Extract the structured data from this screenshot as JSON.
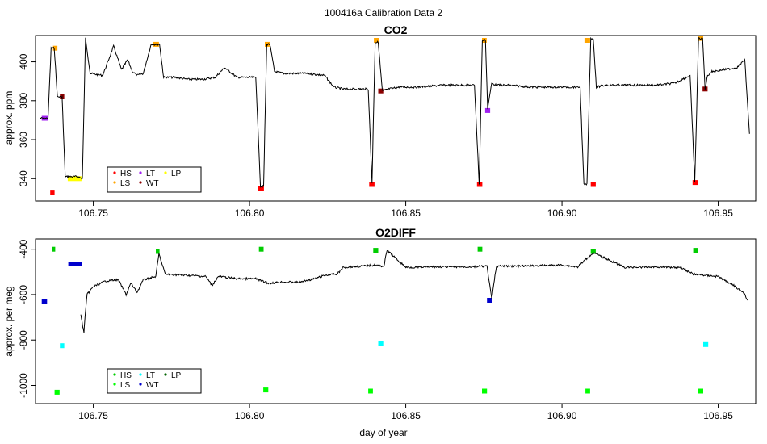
{
  "figure_title": "100416a   Calibration Data 2",
  "x_axis_label": "day of year",
  "x_ticks": [
    "106.75",
    "106.80",
    "106.85",
    "106.90",
    "106.95"
  ],
  "colors": {
    "trace": "#000000",
    "HS": "#ff0000",
    "LS": "#ffa500",
    "LT": "#a020f0",
    "WT": "#8b0000",
    "LP": "#ffff00",
    "o2_HS": "#00cd00",
    "o2_LS": "#00ff00",
    "o2_LT": "#00ffff",
    "o2_WT": "#0000cd",
    "o2_LP": "#006400"
  },
  "chart_data": [
    {
      "type": "line",
      "title": "CO2",
      "ylabel": "approx. ppm",
      "xlim": [
        106.7315,
        106.962
      ],
      "ylim": [
        328.5,
        413.5
      ],
      "y_ticks": [
        "340",
        "360",
        "380",
        "400"
      ],
      "grid": false,
      "legend_position": "bottom-left",
      "legend": [
        "HS",
        "LS",
        "LT",
        "WT",
        "LP"
      ],
      "series": [
        {
          "x": [
            106.733,
            106.7355,
            106.7365,
            106.7375,
            106.7385,
            106.74,
            106.741,
            106.742,
            106.745,
            106.7465,
            106.7475,
            106.749,
            106.753,
            106.7565,
            106.759,
            106.761,
            106.7625,
            106.764,
            106.766,
            106.7685,
            106.77,
            106.7712,
            106.7725,
            106.776,
            106.78,
            106.785,
            106.789,
            106.792,
            106.796,
            106.802,
            106.8035,
            106.8045,
            106.8055,
            106.8065,
            106.808,
            106.811,
            106.818,
            106.824,
            106.827,
            106.83,
            106.838,
            106.8392,
            106.8402,
            106.8412,
            106.8425,
            106.8445,
            106.848,
            106.854,
            106.862,
            106.872,
            106.8735,
            106.8745,
            106.8755,
            106.8762,
            106.8775,
            106.879,
            106.883,
            106.89,
            106.9058,
            106.907,
            106.908,
            106.9092,
            106.91,
            106.911,
            106.914,
            106.92,
            106.93,
            106.936,
            106.941,
            106.9425,
            106.9437,
            106.945,
            106.9458,
            106.9466,
            106.948,
            106.952,
            106.956,
            106.9585,
            106.96
          ],
          "values": [
            371,
            371,
            407,
            407,
            382,
            382,
            341,
            341,
            341,
            340,
            412,
            394,
            393,
            408,
            396,
            401,
            395,
            393,
            394,
            409,
            409,
            409,
            392,
            392,
            391,
            391,
            392,
            397,
            392,
            392,
            336,
            336,
            409,
            409,
            395,
            394,
            394,
            393,
            387,
            386,
            386,
            338,
            410,
            410,
            385,
            386,
            387,
            387,
            388,
            388,
            337,
            411,
            411,
            376,
            389,
            388,
            388,
            387,
            387,
            337,
            337,
            412,
            412,
            387,
            388,
            388,
            388,
            389,
            393,
            338,
            412,
            412,
            386,
            393,
            395,
            396,
            397,
            401,
            363
          ]
        }
      ],
      "calibrations": [
        {
          "label": "LT",
          "x": [
            106.7335,
            106.7355
          ],
          "value": 371
        },
        {
          "label": "HS",
          "x": [
            106.7362,
            106.7376
          ],
          "value": 333
        },
        {
          "label": "LS",
          "x": [
            106.7371,
            106.7385
          ],
          "value": 407
        },
        {
          "label": "WT",
          "x": [
            106.7393,
            106.7407
          ],
          "value": 382
        },
        {
          "label": "LP",
          "x": [
            106.7418,
            106.7462
          ],
          "value": 340
        },
        {
          "label": "LS",
          "x": [
            106.7692,
            106.771
          ],
          "value": 409
        },
        {
          "label": "HS",
          "x": [
            106.8028,
            106.8046
          ],
          "value": 335
        },
        {
          "label": "LS",
          "x": [
            106.8049,
            106.8065
          ],
          "value": 409
        },
        {
          "label": "HS",
          "x": [
            106.8383,
            106.84
          ],
          "value": 337
        },
        {
          "label": "LS",
          "x": [
            106.8398,
            106.8414
          ],
          "value": 411
        },
        {
          "label": "WT",
          "x": [
            106.8412,
            106.8428
          ],
          "value": 385
        },
        {
          "label": "HS",
          "x": [
            106.8728,
            106.8745
          ],
          "value": 337
        },
        {
          "label": "LS",
          "x": [
            106.8744,
            106.8759
          ],
          "value": 411
        },
        {
          "label": "LT",
          "x": [
            106.8754,
            106.877
          ],
          "value": 375
        },
        {
          "label": "LS",
          "x": [
            106.9072,
            106.909
          ],
          "value": 411
        },
        {
          "label": "HS",
          "x": [
            106.9092,
            106.9108
          ],
          "value": 337
        },
        {
          "label": "HS",
          "x": [
            106.9418,
            106.9435
          ],
          "value": 338
        },
        {
          "label": "LS",
          "x": [
            106.9436,
            106.9452
          ],
          "value": 412
        },
        {
          "label": "WT",
          "x": [
            106.945,
            106.9466
          ],
          "value": 386
        }
      ]
    },
    {
      "type": "line",
      "title": "O2DIFF",
      "ylabel": "approx. per meg",
      "xlim": [
        106.7315,
        106.962
      ],
      "ylim": [
        -1080,
        -355
      ],
      "y_ticks": [
        "-1000",
        "-800",
        "-600",
        "-400"
      ],
      "grid": false,
      "legend_position": "bottom-left",
      "legend": [
        "HS",
        "LS",
        "LT",
        "WT",
        "LP"
      ],
      "series": [
        {
          "x": [
            106.746,
            106.747,
            106.7472,
            106.748,
            106.75,
            106.754,
            106.758,
            106.7605,
            106.762,
            106.764,
            106.766,
            106.77,
            106.771,
            106.773,
            106.78,
            106.786,
            106.788,
            106.79,
            106.796,
            106.802,
            106.806,
            106.81,
            106.816,
            106.821,
            106.824,
            106.828,
            106.83,
            106.836,
            106.84,
            106.843,
            106.844,
            106.85,
            106.86,
            106.87,
            106.876,
            106.8775,
            106.879,
            106.885,
            106.9,
            106.905,
            106.91,
            106.92,
            106.93,
            106.938,
            106.942,
            106.95,
            106.955,
            106.958,
            106.9595
          ],
          "values": [
            -690,
            -770,
            -720,
            -600,
            -565,
            -540,
            -535,
            -600,
            -550,
            -590,
            -535,
            -520,
            -420,
            -510,
            -515,
            -520,
            -560,
            -520,
            -530,
            -530,
            -550,
            -545,
            -545,
            -530,
            -515,
            -510,
            -480,
            -475,
            -470,
            -475,
            -405,
            -480,
            -478,
            -478,
            -475,
            -620,
            -475,
            -475,
            -470,
            -478,
            -415,
            -480,
            -478,
            -480,
            -510,
            -520,
            -560,
            -590,
            -625
          ]
        }
      ],
      "calibrations": [
        {
          "label": "WT",
          "x": [
            106.7335,
            106.7352
          ],
          "value": -630
        },
        {
          "label": "HS",
          "x": [
            106.7367,
            106.7378
          ],
          "value": -400
        },
        {
          "label": "LS",
          "x": [
            106.7376,
            106.7392
          ],
          "value": -1030
        },
        {
          "label": "LT",
          "x": [
            106.7393,
            106.7407
          ],
          "value": -825
        },
        {
          "label": "WT",
          "x": [
            106.742,
            106.7465
          ],
          "value": -465
        },
        {
          "label": "HS",
          "x": [
            106.77,
            106.7712
          ],
          "value": -410
        },
        {
          "label": "HS",
          "x": [
            106.803,
            106.8045
          ],
          "value": -400
        },
        {
          "label": "LS",
          "x": [
            106.8044,
            106.806
          ],
          "value": -1020
        },
        {
          "label": "LS",
          "x": [
            106.838,
            106.8395
          ],
          "value": -1025
        },
        {
          "label": "HS",
          "x": [
            106.8396,
            106.8412
          ],
          "value": -405
        },
        {
          "label": "LT",
          "x": [
            106.8412,
            106.8428
          ],
          "value": -815
        },
        {
          "label": "HS",
          "x": [
            106.873,
            106.8745
          ],
          "value": -400
        },
        {
          "label": "LS",
          "x": [
            106.8744,
            106.876
          ],
          "value": -1025
        },
        {
          "label": "WT",
          "x": [
            106.876,
            106.8776
          ],
          "value": -625
        },
        {
          "label": "LS",
          "x": [
            106.9075,
            106.909
          ],
          "value": -1025
        },
        {
          "label": "HS",
          "x": [
            106.9092,
            106.9108
          ],
          "value": -410
        },
        {
          "label": "HS",
          "x": [
            106.942,
            106.9436
          ],
          "value": -405
        },
        {
          "label": "LS",
          "x": [
            106.9436,
            106.9452
          ],
          "value": -1025
        },
        {
          "label": "LT",
          "x": [
            106.9452,
            106.9468
          ],
          "value": -820
        }
      ]
    }
  ]
}
